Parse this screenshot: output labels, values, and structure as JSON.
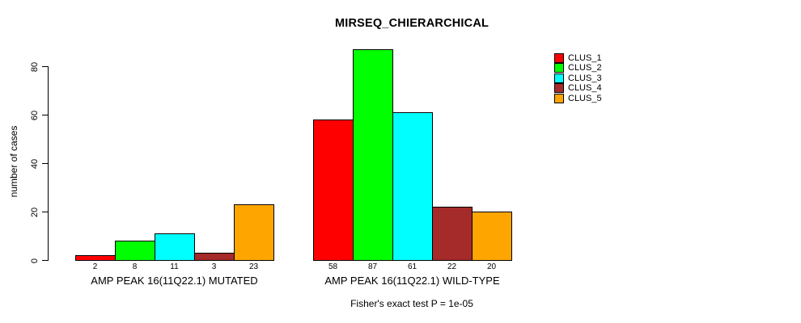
{
  "title": "MIRSEQ_CHIERARCHICAL",
  "footer": "Fisher's exact test P = 1e-05",
  "chart_data": {
    "type": "bar",
    "title": "MIRSEQ_CHIERARCHICAL",
    "xlabel": "",
    "ylabel": "number of cases",
    "ylim": [
      0,
      87
    ],
    "yticks": [
      0,
      20,
      40,
      60,
      80
    ],
    "grid": false,
    "legend_position": "top-right",
    "bar_value_labels_shown": true,
    "categories": [
      "AMP PEAK 16(11Q22.1) MUTATED",
      "AMP PEAK 16(11Q22.1) WILD-TYPE"
    ],
    "series": [
      {
        "name": "CLUS_1",
        "color": "#FF0000",
        "values": [
          2,
          58
        ]
      },
      {
        "name": "CLUS_2",
        "color": "#00FF00",
        "values": [
          8,
          87
        ]
      },
      {
        "name": "CLUS_3",
        "color": "#00FFFF",
        "values": [
          11,
          61
        ]
      },
      {
        "name": "CLUS_4",
        "color": "#A52A2A",
        "values": [
          3,
          22
        ]
      },
      {
        "name": "CLUS_5",
        "color": "#FFA500",
        "values": [
          23,
          20
        ]
      }
    ],
    "annotation": "Fisher's exact test P = 1e-05",
    "axis_color": "#000000",
    "background_color": "#FFFFFF"
  }
}
